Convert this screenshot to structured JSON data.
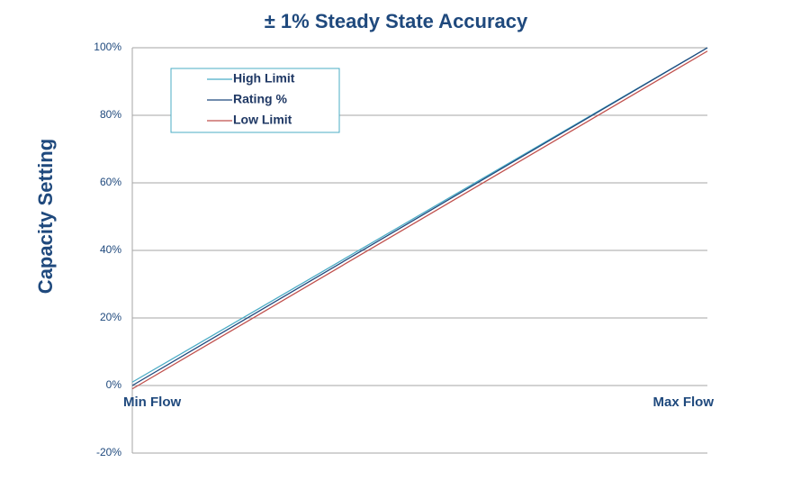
{
  "chart_data": {
    "type": "line",
    "title": "± 1%  Steady State Accuracy",
    "y_label": "Capacity Setting",
    "categories": [
      "Min Flow",
      "Max Flow"
    ],
    "series": [
      {
        "name": "High Limit",
        "color": "#4bacc6",
        "values": [
          1,
          100
        ]
      },
      {
        "name": "Rating %",
        "color": "#1f497d",
        "values": [
          0,
          100
        ]
      },
      {
        "name": "Low Limit",
        "color": "#c0504d",
        "values": [
          -1,
          99
        ]
      }
    ],
    "ylim": [
      -20,
      100
    ],
    "yticks": [
      {
        "value": -20,
        "label": "-20%"
      },
      {
        "value": 0,
        "label": "0%"
      },
      {
        "value": 20,
        "label": "20%"
      },
      {
        "value": 40,
        "label": "40%"
      },
      {
        "value": 60,
        "label": "60%"
      },
      {
        "value": 80,
        "label": "80%"
      },
      {
        "value": 100,
        "label": "100%"
      }
    ],
    "grid": true,
    "legend": "upper left"
  }
}
